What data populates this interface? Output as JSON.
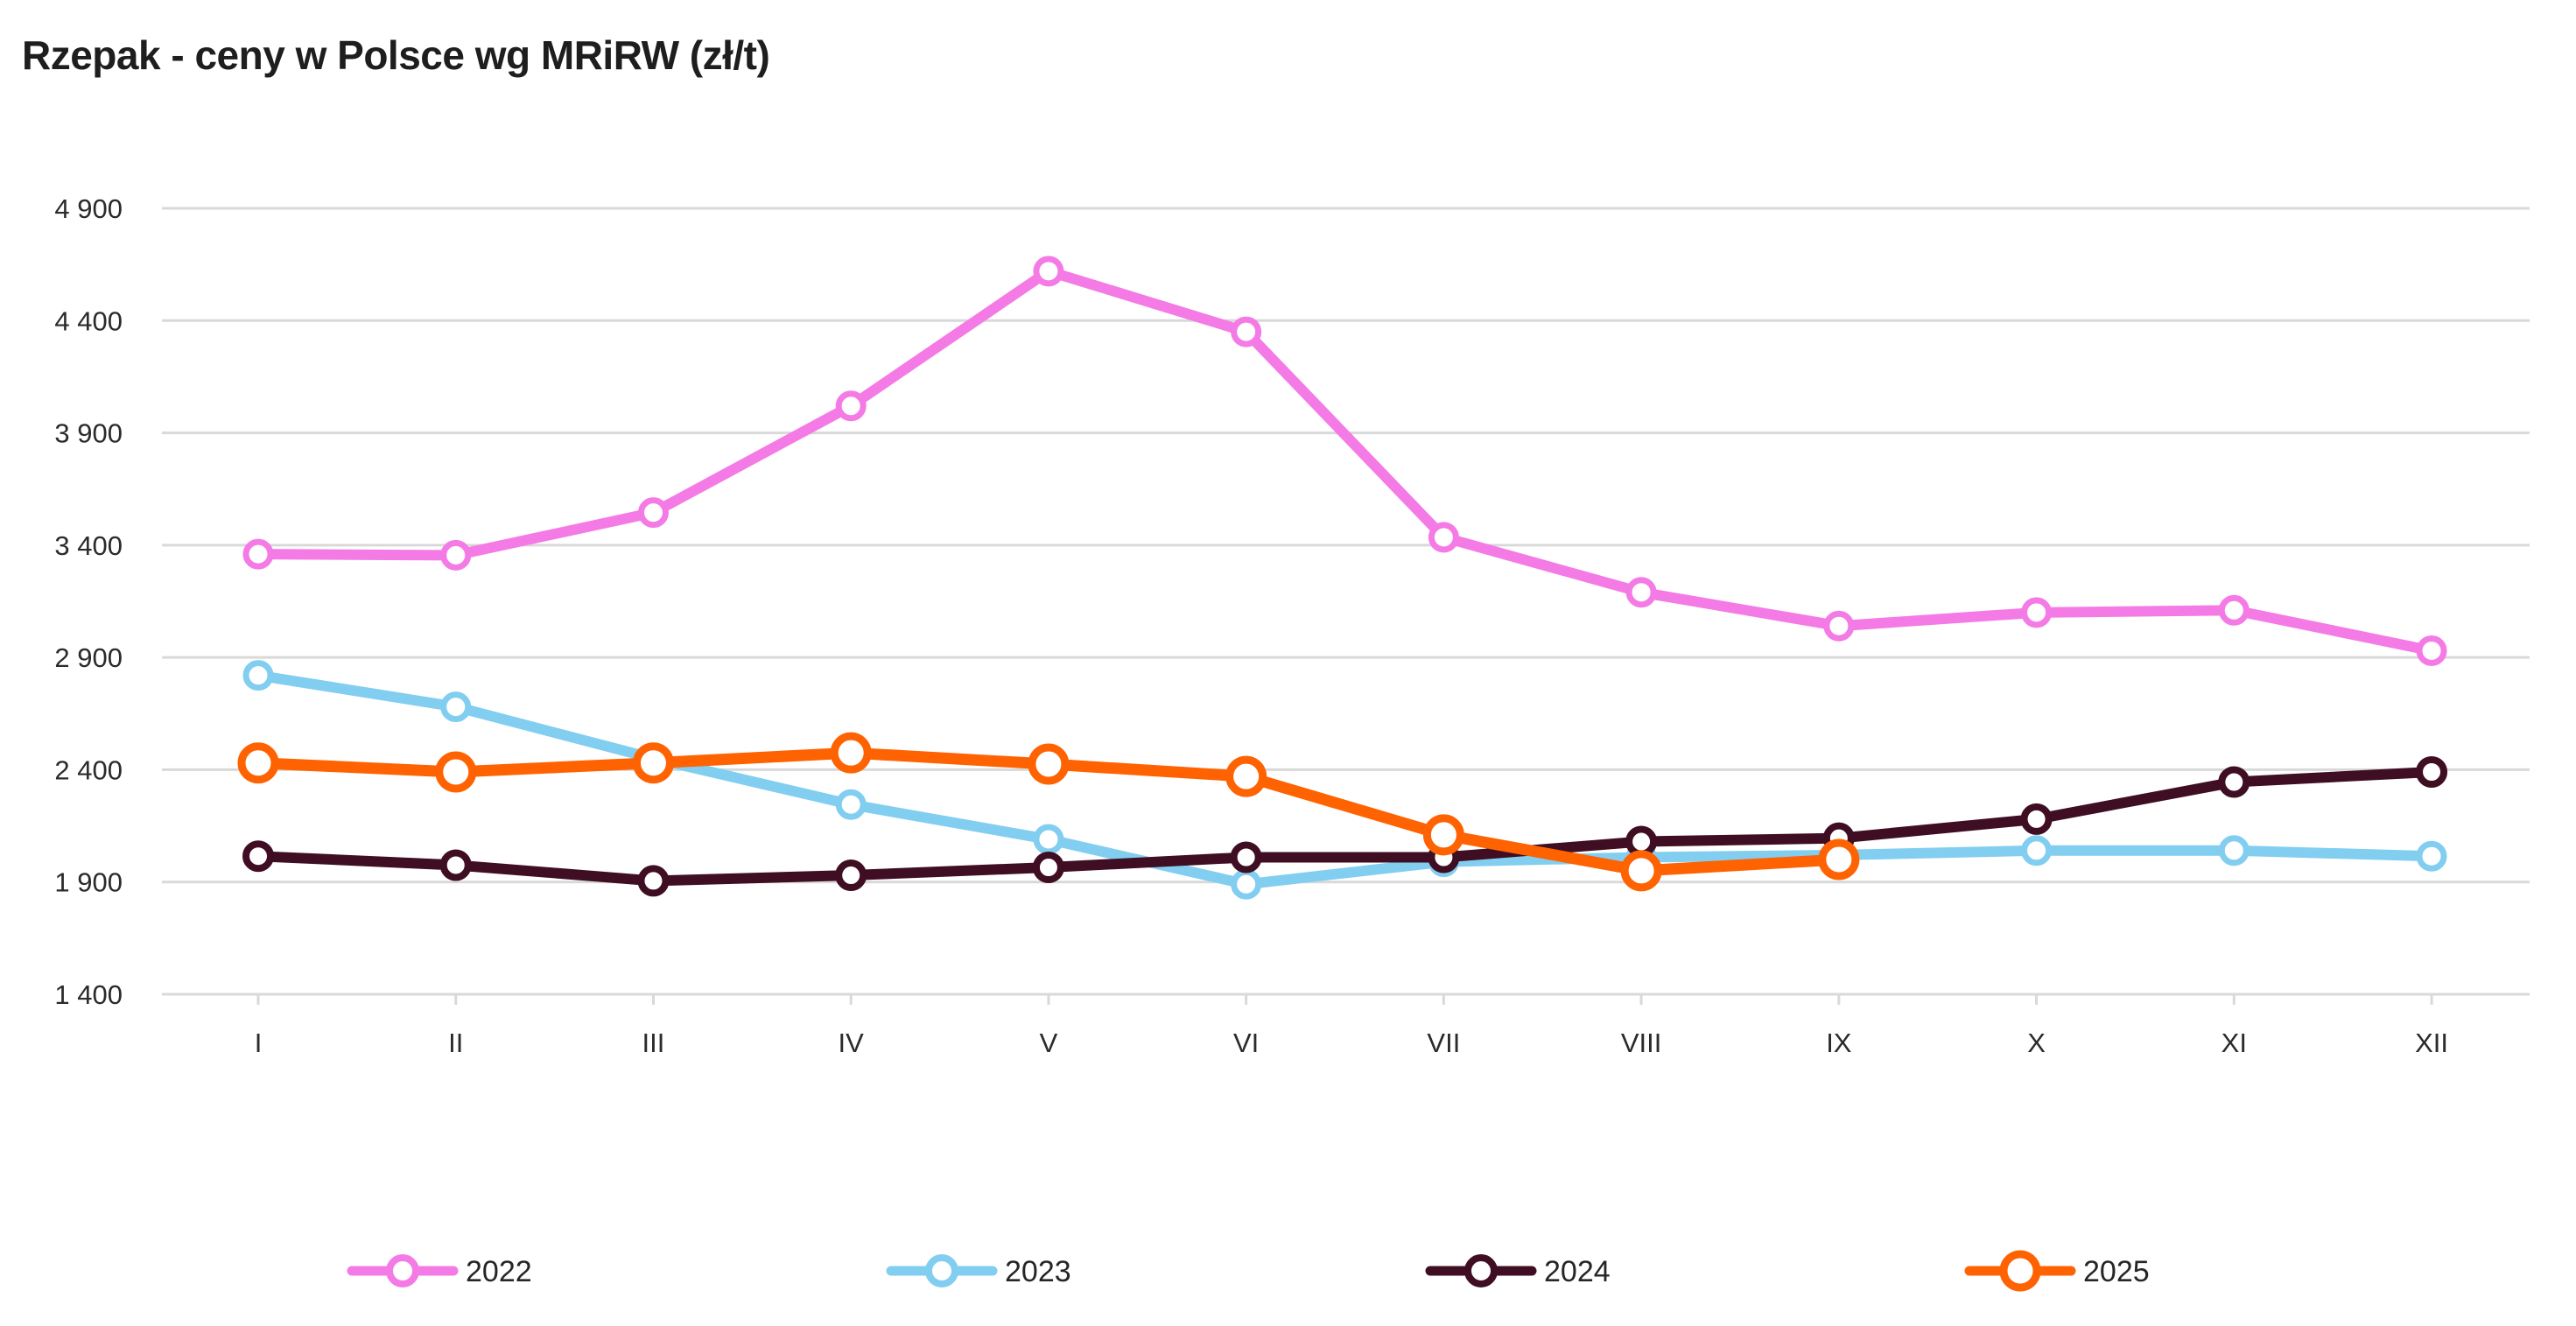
{
  "title": "Rzepak - ceny w Polsce wg MRiRW (zł/t)",
  "colors": {
    "background": "#ffffff",
    "title_text": "#1e1e1e",
    "axis_text": "#2b2b2b",
    "gridline": "#d9d9d9",
    "series_2022": "#f47be6",
    "series_2023": "#82cef0",
    "series_2024": "#3f0e23",
    "series_2025": "#ff6200"
  },
  "chart_data": {
    "type": "line",
    "title": "Rzepak - ceny w Polsce wg MRiRW (zł/t)",
    "xlabel": "",
    "ylabel": "",
    "categories": [
      "I",
      "II",
      "III",
      "IV",
      "V",
      "VI",
      "VII",
      "VIII",
      "IX",
      "X",
      "XI",
      "XII"
    ],
    "series": [
      {
        "name": "2022",
        "color": "#f47be6",
        "values": [
          3360,
          3355,
          3545,
          4020,
          4620,
          4350,
          3435,
          3190,
          3040,
          3100,
          3110,
          2930
        ]
      },
      {
        "name": "2023",
        "color": "#82cef0",
        "values": [
          2820,
          2680,
          2450,
          2245,
          2090,
          1890,
          1990,
          2010,
          2020,
          2040,
          2040,
          2015
        ]
      },
      {
        "name": "2024",
        "color": "#3f0e23",
        "values": [
          2015,
          1975,
          1905,
          1930,
          1965,
          2010,
          2010,
          2080,
          2095,
          2180,
          2345,
          2390
        ]
      },
      {
        "name": "2025",
        "color": "#ff6200",
        "values": [
          2430,
          2390,
          2430,
          2475,
          2425,
          2370,
          2110,
          1950,
          2000
        ]
      }
    ],
    "ylim": [
      1400,
      4900
    ],
    "yticks": [
      {
        "value": 4900,
        "label": "4 900"
      },
      {
        "value": 4400,
        "label": "4 400"
      },
      {
        "value": 3900,
        "label": "3 900"
      },
      {
        "value": 3400,
        "label": "3 400"
      },
      {
        "value": 2900,
        "label": "2 900"
      },
      {
        "value": 2400,
        "label": "2 400"
      },
      {
        "value": 1900,
        "label": "1 900"
      },
      {
        "value": 1400,
        "label": "1 400"
      }
    ],
    "grid": true,
    "legend_position": "bottom",
    "legend_entries": [
      "2022",
      "2023",
      "2024",
      "2025"
    ],
    "marker": "open-circle",
    "unit": "zł/t"
  }
}
